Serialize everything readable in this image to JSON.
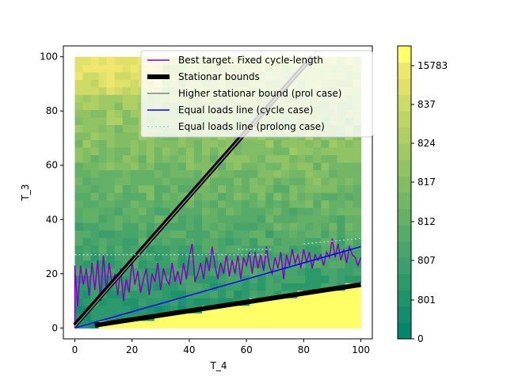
{
  "chart_data": {
    "type": "heatmap",
    "xlabel": "T_4",
    "ylabel": "T_3",
    "xlim": [
      -4,
      104
    ],
    "ylim": [
      -4,
      104
    ],
    "x_ticks": [
      "0",
      "20",
      "40",
      "60",
      "80",
      "100"
    ],
    "y_ticks": [
      "0",
      "20",
      "40",
      "60",
      "80",
      "100"
    ],
    "grid": false,
    "legend_position": "upper-right",
    "heatmap": {
      "x_range": [
        0,
        100
      ],
      "y_range": [
        0,
        100
      ],
      "description_levels": "green shades increase toward upper-left; bright yellow region below the lower stationary bound",
      "low_color": "#00876c",
      "high_color": "#ffff66"
    },
    "series": [
      {
        "name": "Best target. Fixed cycle-length",
        "color": "#8a00c2",
        "style": "solid",
        "points": [
          [
            0,
            0
          ],
          [
            0,
            23
          ],
          [
            1,
            8
          ],
          [
            2,
            23
          ],
          [
            3,
            16
          ],
          [
            4,
            22
          ],
          [
            5,
            12
          ],
          [
            6,
            24
          ],
          [
            7,
            14
          ],
          [
            8,
            25
          ],
          [
            9,
            10
          ],
          [
            10,
            27
          ],
          [
            11,
            14
          ],
          [
            12,
            24
          ],
          [
            13,
            16
          ],
          [
            14,
            20
          ],
          [
            15,
            12
          ],
          [
            16,
            22
          ],
          [
            17,
            10
          ],
          [
            18,
            18
          ],
          [
            19,
            13
          ],
          [
            20,
            25
          ],
          [
            21,
            16
          ],
          [
            22,
            21
          ],
          [
            23,
            13
          ],
          [
            24,
            18
          ],
          [
            25,
            22
          ],
          [
            26,
            12
          ],
          [
            27,
            20
          ],
          [
            28,
            17
          ],
          [
            29,
            24
          ],
          [
            30,
            14
          ],
          [
            31,
            22
          ],
          [
            32,
            18
          ],
          [
            33,
            16
          ],
          [
            34,
            24
          ],
          [
            35,
            17
          ],
          [
            36,
            21
          ],
          [
            37,
            16
          ],
          [
            38,
            24
          ],
          [
            39,
            18
          ],
          [
            40,
            26
          ],
          [
            41,
            31
          ],
          [
            42,
            17
          ],
          [
            43,
            20
          ],
          [
            44,
            24
          ],
          [
            45,
            18
          ],
          [
            46,
            26
          ],
          [
            47,
            21
          ],
          [
            48,
            30
          ],
          [
            49,
            23
          ],
          [
            50,
            18
          ],
          [
            51,
            24
          ],
          [
            52,
            20
          ],
          [
            53,
            27
          ],
          [
            54,
            19
          ],
          [
            55,
            25
          ],
          [
            56,
            20
          ],
          [
            57,
            27
          ],
          [
            58,
            18
          ],
          [
            59,
            26
          ],
          [
            60,
            23
          ],
          [
            61,
            28
          ],
          [
            62,
            20
          ],
          [
            63,
            28
          ],
          [
            64,
            22
          ],
          [
            65,
            27
          ],
          [
            66,
            21
          ],
          [
            67,
            30
          ],
          [
            68,
            23
          ],
          [
            69,
            20
          ],
          [
            70,
            26
          ],
          [
            71,
            22
          ],
          [
            72,
            28
          ],
          [
            73,
            18
          ],
          [
            74,
            27
          ],
          [
            75,
            23
          ],
          [
            76,
            29
          ],
          [
            77,
            24
          ],
          [
            78,
            27
          ],
          [
            79,
            22
          ],
          [
            80,
            29
          ],
          [
            81,
            24
          ],
          [
            82,
            28
          ],
          [
            83,
            22
          ],
          [
            84,
            27
          ],
          [
            85,
            25
          ],
          [
            86,
            27
          ],
          [
            87,
            23
          ],
          [
            88,
            28
          ],
          [
            89,
            26
          ],
          [
            90,
            33
          ],
          [
            91,
            26
          ],
          [
            92,
            31
          ],
          [
            93,
            25
          ],
          [
            94,
            29
          ],
          [
            95,
            24
          ],
          [
            96,
            30
          ],
          [
            97,
            27
          ],
          [
            98,
            26
          ],
          [
            99,
            23
          ],
          [
            100,
            26
          ]
        ]
      },
      {
        "name": "Stationar bounds",
        "color": "#000000",
        "style": "thick",
        "segments": [
          [
            [
              0,
              1
            ],
            [
              83,
              100
            ]
          ],
          [
            [
              7,
              1
            ],
            [
              100,
              16
            ]
          ]
        ]
      },
      {
        "name": "Higher stationar bound (prol case)",
        "color": "#808080",
        "style": "solid",
        "segments": [
          [
            [
              0,
              0.5
            ],
            [
              83,
              100
            ]
          ]
        ]
      },
      {
        "name": "Equal loads line (cycle case)",
        "color": "#0000ff",
        "style": "solid",
        "segments": [
          [
            [
              0,
              0
            ],
            [
              100,
              30
            ]
          ]
        ]
      },
      {
        "name": "Equal loads line (prolong case)",
        "color": "#a0d8d0",
        "style": "dotted",
        "segments": [
          [
            [
              0,
              27
            ],
            [
              68,
              27
            ]
          ],
          [
            [
              57,
              29
            ],
            [
              69,
              29
            ]
          ],
          [
            [
              80,
              31
            ],
            [
              100,
              33
            ]
          ]
        ]
      }
    ],
    "colorbar": {
      "tick_labels": [
        "0",
        "801",
        "807",
        "812",
        "817",
        "824",
        "837",
        "15783"
      ],
      "colors": [
        "#00876c",
        "#118d6d",
        "#1f936c",
        "#2c996b",
        "#3a9f6a",
        "#47a569",
        "#55ab67",
        "#63b166",
        "#71b765",
        "#80bd64",
        "#8fc363",
        "#9ec963",
        "#aecf63",
        "#bed564",
        "#cedb66",
        "#dfe169",
        "#efe76d",
        "#ffff66"
      ]
    }
  }
}
